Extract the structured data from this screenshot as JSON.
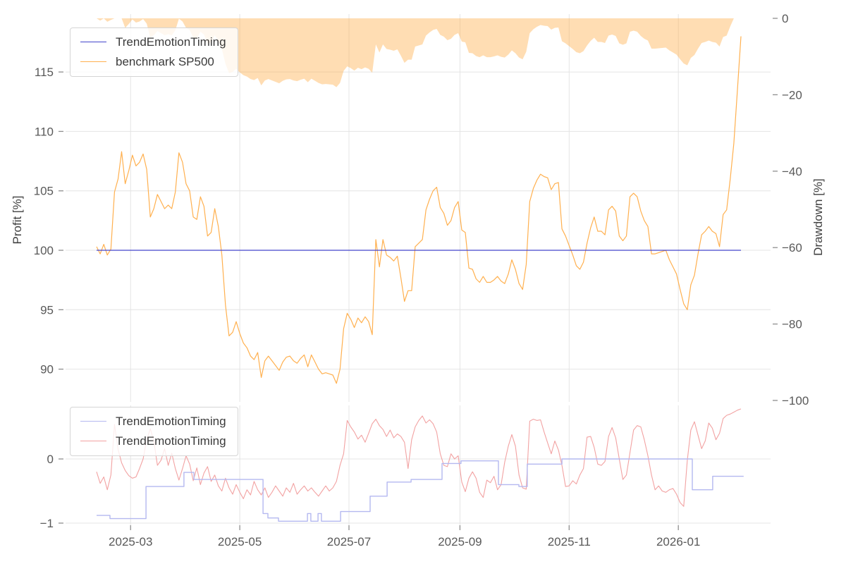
{
  "figure": {
    "background": "#ffffff",
    "grid_color": "#e4e4e4",
    "tick_color": "#8f8f8f",
    "tick_label_color": "#595959",
    "axis_label_color": "#3f3f3f"
  },
  "chart_data": [
    {
      "id": "equity-vs-benchmark",
      "type": "line",
      "x_start_date": "2025-02-10",
      "x_step_days": 2,
      "x_tick_labels": [
        "2025-03",
        "2025-05",
        "2025-07",
        "2025-09",
        "2025-11",
        "2026-01"
      ],
      "x_tick_days": [
        19,
        80,
        141,
        203,
        264,
        325
      ],
      "left_axis": {
        "label": "Profit [%]",
        "ticks": [
          115,
          110,
          105,
          100,
          95,
          90
        ],
        "tick_labels": [
          "115",
          "110",
          "105",
          "100",
          "95",
          "90"
        ]
      },
      "right_axis": {
        "label": "Drawdown [%]",
        "ticks": [
          0,
          -20,
          -40,
          -60,
          -80,
          -100
        ],
        "tick_labels": [
          "0",
          "−20",
          "−40",
          "−60",
          "−80",
          "−100"
        ]
      },
      "legend": [
        {
          "label": "TrendEmotionTiming",
          "color": "#4446cc"
        },
        {
          "label": "benchmark SP500",
          "color": "#ffb04f"
        }
      ],
      "series": [
        {
          "name": "TrendEmotionTiming",
          "axis": "left",
          "color": "#4446cc",
          "constant_value": 100.0
        },
        {
          "name": "benchmark SP500",
          "axis": "left",
          "color": "#ffb04f",
          "values": [
            100.3,
            99.7,
            100.5,
            99.6,
            100.1,
            104.9,
            106.0,
            108.3,
            105.6,
            106.7,
            108.0,
            107.1,
            107.4,
            108.1,
            106.8,
            102.8,
            103.5,
            104.7,
            104.1,
            103.5,
            103.8,
            103.5,
            104.9,
            108.2,
            107.4,
            105.6,
            105.0,
            102.8,
            102.6,
            104.5,
            103.7,
            101.2,
            101.5,
            103.5,
            102.0,
            99.6,
            95.4,
            92.8,
            93.1,
            94.0,
            93.0,
            92.2,
            91.8,
            91.1,
            90.8,
            91.4,
            89.3,
            90.7,
            91.1,
            90.7,
            90.3,
            89.9,
            90.6,
            91.0,
            91.1,
            90.7,
            90.5,
            90.9,
            91.2,
            90.2,
            91.2,
            90.6,
            90.0,
            89.6,
            89.7,
            89.6,
            89.5,
            88.8,
            90.0,
            93.4,
            94.7,
            94.2,
            93.5,
            94.3,
            93.9,
            94.4,
            94.0,
            92.9,
            100.9,
            98.6,
            100.9,
            99.6,
            99.4,
            99.1,
            99.5,
            97.7,
            95.7,
            96.6,
            96.6,
            100.3,
            100.6,
            100.9,
            103.4,
            104.3,
            105.0,
            105.3,
            103.6,
            103.1,
            102.1,
            102.5,
            103.6,
            104.1,
            101.7,
            101.5,
            98.5,
            98.4,
            97.6,
            97.3,
            97.8,
            97.3,
            97.3,
            97.5,
            97.8,
            97.4,
            97.2,
            98.0,
            99.2,
            98.4,
            97.2,
            96.7,
            98.8,
            104.1,
            105.2,
            105.9,
            106.4,
            106.2,
            106.1,
            105.1,
            105.6,
            105.7,
            101.8,
            101.2,
            100.4,
            99.6,
            98.7,
            98.4,
            99.0,
            100.6,
            101.9,
            102.8,
            101.6,
            101.6,
            101.3,
            103.4,
            103.7,
            103.3,
            101.2,
            100.8,
            101.2,
            104.5,
            104.8,
            104.5,
            103.3,
            102.5,
            102.0,
            99.7,
            99.7,
            99.8,
            99.9,
            100.0,
            99.2,
            98.6,
            98.0,
            96.7,
            95.5,
            95.0,
            97.1,
            97.9,
            99.7,
            101.3,
            101.6,
            102.0,
            101.6,
            101.4,
            100.3,
            103.0,
            103.4,
            106.0,
            109.0,
            113.5,
            118.0
          ]
        }
      ],
      "drawdown_fill": {
        "axis": "right",
        "source": "benchmark SP500",
        "formula": "(value / running_max - 1) * 100",
        "fill_color": "rgba(255,173,74,0.42)"
      }
    },
    {
      "id": "positions",
      "type": "line",
      "left_axis": {
        "ticks": [
          0,
          -1
        ],
        "tick_labels": [
          "0",
          "−1"
        ]
      },
      "legend": [
        {
          "label": "TrendEmotionTiming",
          "color": "#b4b8f0"
        },
        {
          "label": "TrendEmotionTiming",
          "color": "#f2a2a2"
        }
      ],
      "series": [
        {
          "name": "TrendEmotionTiming",
          "color": "#b4b8f0",
          "steps": [
            [
              0,
              7.5,
              -0.88
            ],
            [
              7.5,
              27.6,
              -0.93
            ],
            [
              27.6,
              48.8,
              -0.43
            ],
            [
              48.8,
              54.4,
              -0.21
            ],
            [
              54.4,
              93,
              -0.32
            ],
            [
              93,
              95.7,
              -0.85
            ],
            [
              95.7,
              101.6,
              -0.92
            ],
            [
              101.6,
              117.8,
              -0.97
            ],
            [
              117.8,
              119.7,
              -0.85
            ],
            [
              119.7,
              123.7,
              -0.97
            ],
            [
              123.7,
              125.6,
              -0.85
            ],
            [
              125.6,
              136.3,
              -0.97
            ],
            [
              136.3,
              152.8,
              -0.82
            ],
            [
              152.8,
              162.3,
              -0.58
            ],
            [
              162.3,
              175.7,
              -0.36
            ],
            [
              175.7,
              193,
              -0.32
            ],
            [
              193,
              203.6,
              -0.07
            ],
            [
              203.6,
              224.5,
              -0.03
            ],
            [
              224.5,
              235.9,
              -0.4
            ],
            [
              235.9,
              240.6,
              -0.43
            ],
            [
              240.6,
              260,
              -0.08
            ],
            [
              260,
              332.8,
              0.0
            ],
            [
              332.8,
              344.2,
              -0.48
            ],
            [
              344.2,
              361.5,
              -0.27
            ]
          ]
        },
        {
          "name": "TrendEmotionTiming",
          "color": "#f2a2a2",
          "values": [
            -0.2,
            -0.38,
            -0.28,
            -0.48,
            -0.25,
            0.54,
            0.15,
            -0.06,
            -0.18,
            -0.26,
            -0.3,
            -0.28,
            -0.15,
            0.0,
            0.3,
            0.47,
            0.28,
            -0.1,
            -0.02,
            0.16,
            -0.1,
            0.09,
            -0.15,
            -0.33,
            -0.15,
            0.05,
            -0.08,
            -0.34,
            -0.14,
            -0.4,
            -0.22,
            -0.12,
            -0.35,
            -0.25,
            -0.42,
            -0.5,
            -0.3,
            -0.45,
            -0.55,
            -0.4,
            -0.52,
            -0.62,
            -0.48,
            -0.56,
            -0.35,
            -0.48,
            -0.56,
            -0.45,
            -0.6,
            -0.52,
            -0.42,
            -0.5,
            -0.58,
            -0.45,
            -0.52,
            -0.38,
            -0.55,
            -0.48,
            -0.42,
            -0.5,
            -0.45,
            -0.52,
            -0.58,
            -0.5,
            -0.42,
            -0.5,
            -0.45,
            -0.35,
            -0.1,
            0.08,
            0.6,
            0.5,
            0.42,
            0.31,
            0.37,
            0.26,
            0.4,
            0.55,
            0.62,
            0.52,
            0.46,
            0.35,
            0.45,
            0.33,
            0.39,
            0.35,
            0.26,
            -0.15,
            0.3,
            0.5,
            0.6,
            0.67,
            0.56,
            0.61,
            0.55,
            0.42,
            0.08,
            -0.1,
            -0.12,
            0.08,
            0.0,
            0.05,
            -0.36,
            -0.51,
            -0.3,
            -0.2,
            -0.3,
            -0.52,
            -0.6,
            -0.33,
            -0.37,
            -0.27,
            -0.48,
            -0.4,
            -0.05,
            0.2,
            0.38,
            0.2,
            -0.25,
            -0.45,
            -0.47,
            0.59,
            0.62,
            0.6,
            0.61,
            0.42,
            0.25,
            0.08,
            0.28,
            0.14,
            -0.1,
            -0.43,
            -0.42,
            -0.34,
            -0.39,
            -0.25,
            -0.15,
            0.34,
            0.35,
            0.18,
            -0.08,
            -0.1,
            -0.04,
            0.35,
            0.49,
            0.33,
            0.0,
            -0.32,
            -0.25,
            0.1,
            0.45,
            0.52,
            0.5,
            0.3,
            0.05,
            -0.25,
            -0.48,
            -0.42,
            -0.5,
            -0.52,
            -0.48,
            -0.46,
            -0.55,
            -0.68,
            -0.74,
            -0.02,
            0.45,
            0.58,
            0.37,
            0.16,
            0.28,
            0.56,
            0.48,
            0.3,
            0.4,
            0.63,
            0.68,
            0.7,
            0.73,
            0.76,
            0.78
          ]
        }
      ]
    }
  ]
}
